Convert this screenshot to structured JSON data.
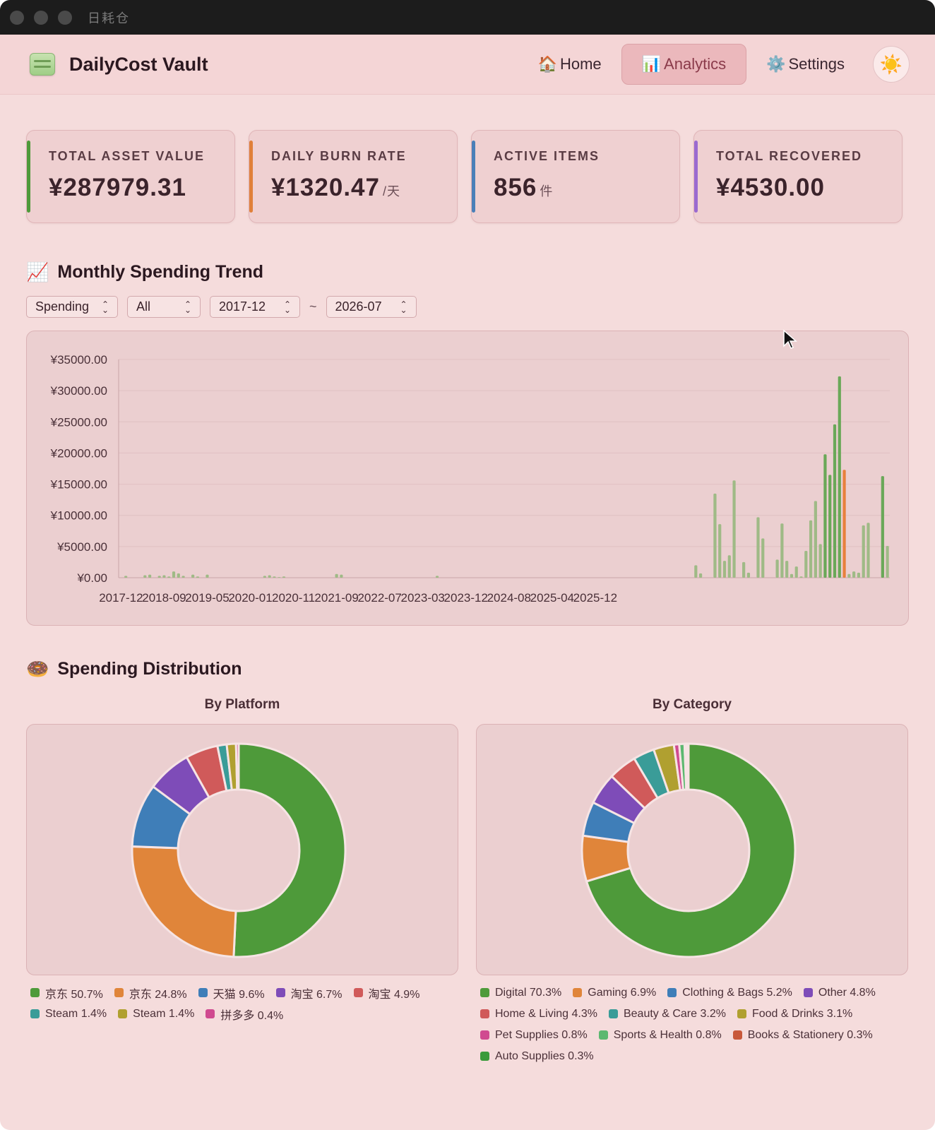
{
  "window": {
    "title": "日耗仓"
  },
  "header": {
    "brand": "DailyCost Vault",
    "nav": [
      {
        "icon": "🏠",
        "label": "Home"
      },
      {
        "icon": "📊",
        "label": "Analytics"
      },
      {
        "icon": "⚙️",
        "label": "Settings"
      }
    ],
    "theme_icon": "☀️"
  },
  "stats": [
    {
      "label": "TOTAL ASSET VALUE",
      "value": "¥287979.31",
      "unit": "",
      "color": "#4e9a3a"
    },
    {
      "label": "DAILY BURN RATE",
      "value": "¥1320.47",
      "unit": "/天",
      "color": "#e0803a"
    },
    {
      "label": "ACTIVE ITEMS",
      "value": "856",
      "unit": "件",
      "color": "#4a7fb8"
    },
    {
      "label": "TOTAL RECOVERED",
      "value": "¥4530.00",
      "unit": "",
      "color": "#9a6ad0"
    }
  ],
  "trend": {
    "icon": "📈",
    "title": "Monthly Spending Trend",
    "filters": {
      "metric": "Spending",
      "platform": "All",
      "start": "2017-12",
      "end": "2026-07",
      "separator": "~"
    }
  },
  "distribution": {
    "icon": "🍩",
    "title": "Spending Distribution",
    "platform_caption": "By Platform",
    "category_caption": "By Category"
  },
  "chart_data": [
    {
      "type": "bar",
      "title": "Monthly Spending Trend",
      "ylim": [
        0,
        35000
      ],
      "y_ticks": [
        "¥0.00",
        "¥5000.00",
        "¥10000.00",
        "¥15000.00",
        "¥20000.00",
        "¥25000.00",
        "¥30000.00",
        "¥35000.00"
      ],
      "x_ticks": [
        "2017-12",
        "2018-09",
        "2019-05",
        "2020-01",
        "2020-11",
        "2021-09",
        "2022-07",
        "2023-03",
        "2023-12",
        "2024-08",
        "2025-04",
        "2025-12"
      ],
      "highlight_color": "#e8803c",
      "bar_color": "#9fba86",
      "strong_color": "#6aa858",
      "values": [
        0,
        300,
        0,
        0,
        0,
        400,
        500,
        0,
        300,
        400,
        200,
        1000,
        700,
        300,
        0,
        500,
        200,
        0,
        500,
        0,
        0,
        0,
        0,
        0,
        0,
        0,
        0,
        0,
        0,
        0,
        300,
        400,
        200,
        100,
        200,
        0,
        0,
        0,
        0,
        0,
        0,
        0,
        0,
        0,
        0,
        600,
        500,
        0,
        0,
        0,
        0,
        0,
        0,
        0,
        0,
        0,
        0,
        0,
        0,
        0,
        0,
        0,
        0,
        0,
        0,
        0,
        300,
        0,
        0,
        0,
        0,
        0,
        0,
        0,
        0,
        0,
        0,
        0,
        0,
        0,
        0,
        0,
        0,
        0,
        0,
        0,
        0,
        0,
        0,
        0,
        0,
        0,
        0,
        0,
        0,
        0,
        0,
        0,
        0,
        0,
        0,
        0,
        0,
        0,
        0,
        0,
        0,
        0,
        0,
        0,
        0,
        0,
        0,
        0,
        0,
        0,
        0,
        0,
        0,
        0,
        2000,
        700,
        0,
        0,
        13500,
        8600,
        2700,
        3600,
        15600,
        0,
        2500,
        800,
        0,
        9700,
        6300,
        0,
        0,
        2900,
        8700,
        2700,
        600,
        1800,
        200,
        4300,
        9200,
        12300,
        5400,
        19800,
        16500,
        24600,
        32300,
        17300,
        600,
        1000,
        800,
        8400,
        8800,
        0,
        0,
        16300,
        5100
      ],
      "highlight_index": 151
    },
    {
      "type": "pie",
      "title": "By Platform",
      "labels": [
        "京东",
        "京东",
        "天猫",
        "淘宝",
        "淘宝",
        "Steam",
        "Steam",
        "拼多多"
      ],
      "values": [
        50.7,
        24.8,
        9.6,
        6.7,
        4.9,
        1.4,
        1.4,
        0.4
      ],
      "display": [
        "京东 50.7%",
        "京东 24.8%",
        "天猫 9.6%",
        "淘宝 6.7%",
        "淘宝 4.9%",
        "Steam 1.4%",
        "Steam 1.4%",
        "拼多多 0.4%"
      ],
      "colors": [
        "#4e9a3a",
        "#e0853a",
        "#3f7eb8",
        "#7e4cb8",
        "#d05a5a",
        "#3a9c98",
        "#b0a030",
        "#d04a90"
      ]
    },
    {
      "type": "pie",
      "title": "By Category",
      "labels": [
        "Digital",
        "Gaming",
        "Clothing & Bags",
        "Other",
        "Home & Living",
        "Beauty & Care",
        "Food & Drinks",
        "Pet Supplies",
        "Sports & Health",
        "Books & Stationery",
        "Auto Supplies"
      ],
      "values": [
        70.3,
        6.9,
        5.2,
        4.8,
        4.3,
        3.2,
        3.1,
        0.8,
        0.8,
        0.3,
        0.3
      ],
      "display": [
        "Digital 70.3%",
        "Gaming 6.9%",
        "Clothing & Bags 5.2%",
        "Other 4.8%",
        "Home & Living 4.3%",
        "Beauty & Care 3.2%",
        "Food & Drinks 3.1%",
        "Pet Supplies 0.8%",
        "Sports & Health 0.8%",
        "Books & Stationery 0.3%",
        "Auto Supplies 0.3%"
      ],
      "colors": [
        "#4e9a3a",
        "#e0853a",
        "#3f7eb8",
        "#7e4cb8",
        "#d05a5a",
        "#3a9c98",
        "#b0a030",
        "#d04a90",
        "#5cb870",
        "#c8583a",
        "#3a9a3a"
      ]
    }
  ]
}
